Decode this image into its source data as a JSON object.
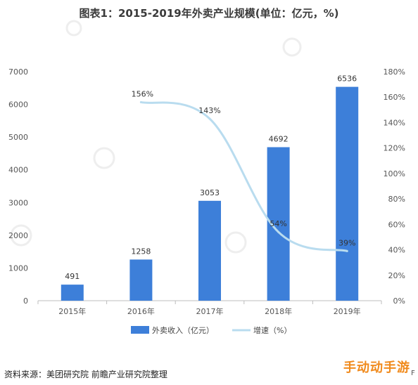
{
  "title": "图表1：2015-2019年外卖产业规模(单位：亿元，%)",
  "source": "资料来源：美团研究院 前瞻产业研究院整理",
  "stamp": "手动动手游",
  "stamp_tail": "F",
  "chart_data": {
    "type": "bar",
    "categories": [
      "2015年",
      "2016年",
      "2017年",
      "2018年",
      "2019年"
    ],
    "series": [
      {
        "name": "外卖收入（亿元）",
        "type": "bar",
        "axis": "left",
        "values": [
          491,
          1258,
          3053,
          4692,
          6536
        ],
        "color": "#3d7fd9"
      },
      {
        "name": "增速（%）",
        "type": "line",
        "axis": "right",
        "values": [
          null,
          156,
          143,
          54,
          39
        ],
        "labels": [
          "",
          "156%",
          "143%",
          "54%",
          "39%"
        ],
        "color": "#b9dcef"
      }
    ],
    "y_left": {
      "ylim": [
        0,
        7000
      ],
      "ticks": [
        "0",
        "1000",
        "2000",
        "3000",
        "4000",
        "5000",
        "6000",
        "7000"
      ]
    },
    "y_right": {
      "ylim": [
        0,
        180
      ],
      "ticks": [
        "0%",
        "20%",
        "40%",
        "60%",
        "80%",
        "100%",
        "120%",
        "140%",
        "160%",
        "180%"
      ]
    },
    "grid": false,
    "legend": "bottom"
  }
}
